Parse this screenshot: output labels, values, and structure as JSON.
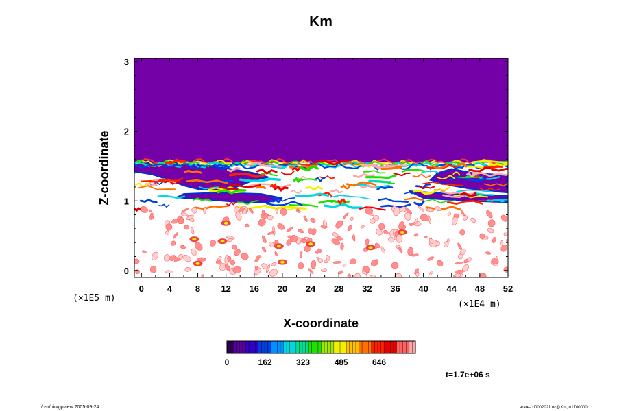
{
  "chart_data": {
    "type": "heatmap",
    "title": "Km",
    "xlabel": "X-coordinate",
    "ylabel": "Z-coordinate",
    "x_multiplier": "(×1E4 m)",
    "y_multiplier": "(×1E5 m)",
    "x_ticks": [
      "0",
      "4",
      "8",
      "12",
      "16",
      "20",
      "24",
      "28",
      "32",
      "36",
      "40",
      "44",
      "48",
      "52"
    ],
    "y_ticks": [
      "0",
      "1",
      "2",
      "3"
    ],
    "xlim": [
      -1,
      52
    ],
    "ylim": [
      -0.1,
      3.05
    ],
    "colorbar": {
      "range": [
        0,
        800
      ],
      "ticks": [
        "0",
        "162",
        "323",
        "485",
        "646"
      ],
      "tick_values": [
        0,
        162,
        323,
        485,
        646
      ],
      "colors": [
        "#2b0050",
        "#5a00a0",
        "#3000c8",
        "#0040e0",
        "#0090ff",
        "#00d8e0",
        "#00e090",
        "#20e000",
        "#a0e800",
        "#f0f000",
        "#ffc000",
        "#ff7000",
        "#ff2000",
        "#e80000",
        "#ff6060",
        "#ffa8a8"
      ]
    },
    "fields": {
      "upper_background_value": 10,
      "upper_background_color": "#7400a8",
      "transition_band_z": [
        0.9,
        1.6
      ],
      "lower_region_colors": [
        "#ffffff",
        "#ffd0d0",
        "#ff9090",
        "#f04040"
      ]
    },
    "time_label": "t=1.7e+06 s"
  },
  "footer": {
    "left": "/usr/bin/gpview 2005-09-24",
    "right": "arare-ctl0002021.nc@Km,t=1700000"
  },
  "colors": {
    "background": "#ffffff",
    "axis": "#000000",
    "purple_field": "#7400a8"
  }
}
